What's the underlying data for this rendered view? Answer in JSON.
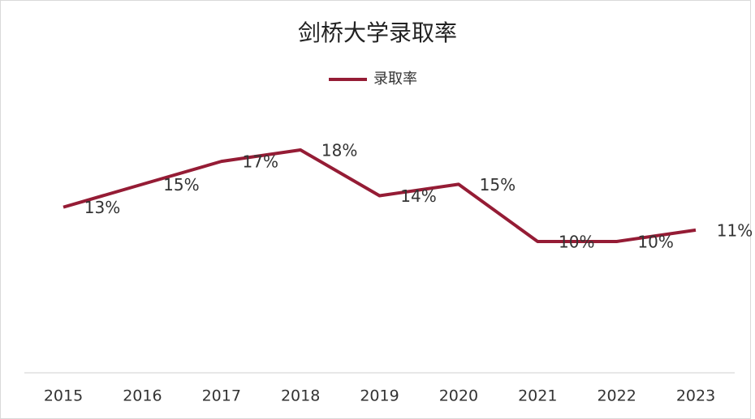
{
  "chart_data": {
    "type": "line",
    "title": "剑桥大学录取率",
    "categories": [
      "2015",
      "2016",
      "2017",
      "2018",
      "2019",
      "2020",
      "2021",
      "2022",
      "2023"
    ],
    "series": [
      {
        "name": "录取率",
        "color": "#951c35",
        "values": [
          13,
          15,
          17,
          18,
          14,
          15,
          10,
          10,
          11
        ],
        "value_labels": [
          "13%",
          "15%",
          "17%",
          "18%",
          "14%",
          "15%",
          "10%",
          "10%",
          "11%"
        ]
      }
    ],
    "legend": "top",
    "grid": false
  }
}
